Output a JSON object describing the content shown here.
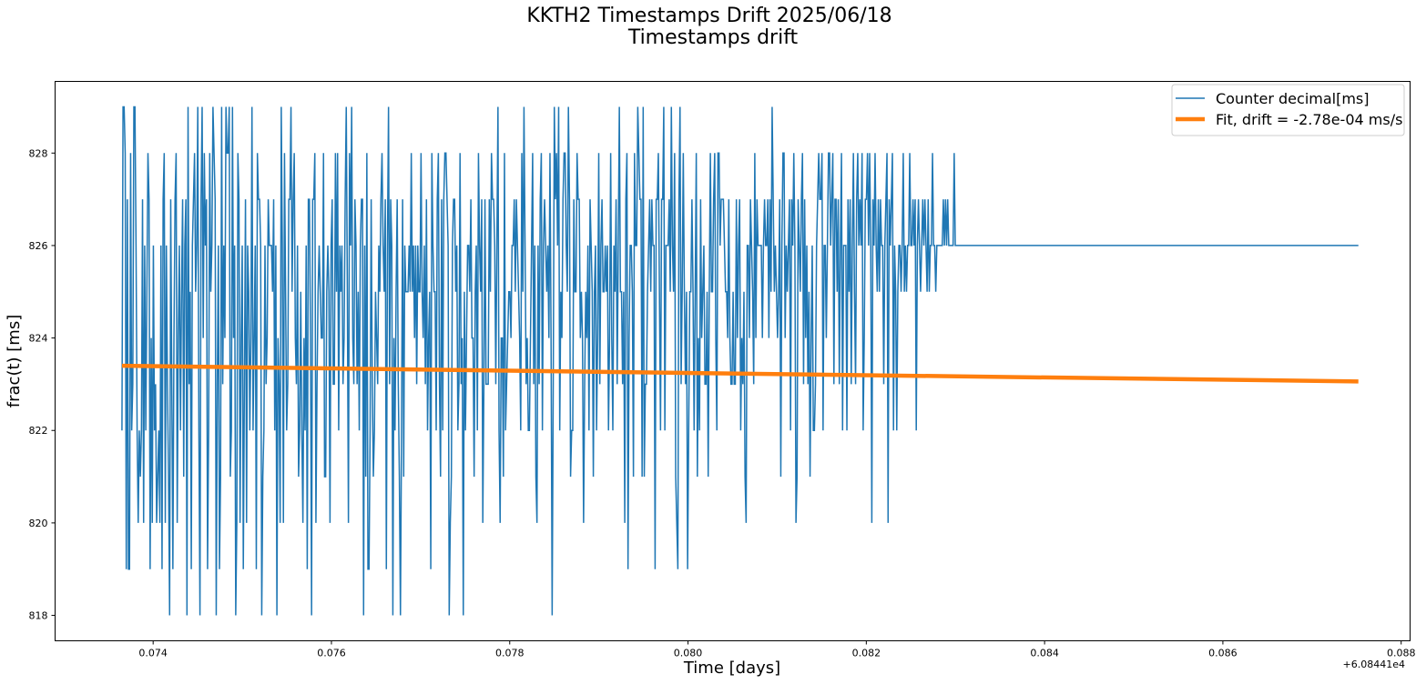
{
  "chart_data": {
    "type": "line",
    "title": "KKTH2 Timestamps Drift 2025/06/18",
    "subtitle": "Timestamps drift",
    "xlabel": "Time [days]",
    "ylabel": "frac(t) [ms]",
    "x_offset_label": "+6.08441e4",
    "xlim": [
      0.0729,
      0.0881
    ],
    "ylim": [
      817.45,
      829.55
    ],
    "xticks": [
      0.074,
      0.076,
      0.078,
      0.08,
      0.082,
      0.084,
      0.086,
      0.088
    ],
    "xtick_labels": [
      "0.074",
      "0.076",
      "0.078",
      "0.080",
      "0.082",
      "0.084",
      "0.086",
      "0.088"
    ],
    "yticks": [
      818,
      820,
      822,
      824,
      826,
      828
    ],
    "ytick_labels": [
      "818",
      "820",
      "822",
      "824",
      "826",
      "828"
    ],
    "grid": false,
    "legend_position": "top-right",
    "series": [
      {
        "name": "Counter decimal[ms]",
        "color": "#1f77b4",
        "x_start": 0.07365,
        "x_end": 0.08752,
        "n_points": 1200,
        "value_min": 818,
        "value_max": 829,
        "values": [
          822,
          829,
          829,
          828,
          819,
          827,
          819,
          819,
          828,
          822,
          823,
          829,
          829,
          826,
          822,
          820,
          822,
          821,
          822,
          827,
          820,
          826,
          822,
          825,
          828,
          827,
          819,
          824,
          820,
          826,
          822,
          823,
          820,
          821,
          822,
          820,
          826,
          819,
          827,
          828,
          820,
          826,
          823,
          821,
          818,
          827,
          823,
          819,
          824,
          827,
          828,
          820,
          824,
          826,
          822,
          825,
          827,
          821,
          826,
          827,
          818,
          829,
          823,
          825,
          819,
          826,
          827,
          828,
          825,
          826,
          829,
          822,
          818,
          827,
          829,
          824,
          828,
          826,
          827,
          819,
          822,
          828,
          825,
          826,
          829,
          828,
          827,
          818,
          823,
          826,
          819,
          821,
          829,
          823,
          826,
          824,
          829,
          828,
          828,
          829,
          821,
          822,
          829,
          824,
          826,
          818,
          820,
          828,
          827,
          820,
          824,
          826,
          819,
          823,
          827,
          820,
          826,
          825,
          822,
          824,
          829,
          822,
          824,
          826,
          819,
          828,
          827,
          827,
          826,
          818,
          821,
          822,
          826,
          823,
          824,
          827,
          826,
          826,
          826,
          825,
          827,
          822,
          826,
          818,
          824,
          823,
          820,
          829,
          826,
          820,
          828,
          825,
          822,
          823,
          827,
          827,
          829,
          825,
          827,
          828,
          824,
          823,
          826,
          821,
          822,
          825,
          822,
          820,
          824,
          822,
          826,
          819,
          827,
          827,
          824,
          818,
          827,
          827,
          828,
          820,
          823,
          825,
          826,
          825,
          824,
          824,
          828,
          821,
          821,
          825,
          826,
          825,
          820,
          826,
          827,
          823,
          823,
          828,
          825,
          828,
          822,
          826,
          825,
          826,
          823,
          824,
          827,
          829,
          825,
          820,
          828,
          826,
          829,
          824,
          823,
          827,
          826,
          823,
          825,
          822,
          826,
          827,
          827,
          818,
          826,
          821,
          828,
          819,
          819,
          822,
          827,
          823,
          821,
          822,
          825,
          824,
          823,
          826,
          825,
          827,
          828,
          826,
          825,
          827,
          819,
          826,
          829,
          823,
          827,
          826,
          818,
          824,
          822,
          825,
          827,
          823,
          821,
          818,
          822,
          827,
          821,
          826,
          825,
          825,
          825,
          826,
          825,
          828,
          825,
          826,
          824,
          826,
          823,
          826,
          825,
          825,
          828,
          825,
          824,
          826,
          823,
          827,
          822,
          824,
          825,
          819,
          828,
          826,
          825,
          825,
          822,
          827,
          828,
          823,
          821,
          827,
          822,
          827,
          828,
          828,
          827,
          826,
          818,
          820,
          821,
          826,
          827,
          827,
          825,
          826,
          822,
          823,
          828,
          823,
          824,
          818,
          825,
          822,
          824,
          826,
          826,
          825,
          827,
          824,
          824,
          821,
          825,
          826,
          822,
          828,
          826,
          825,
          827,
          820,
          823,
          827,
          823,
          823,
          823,
          827,
          825,
          828,
          827,
          827,
          826,
          823,
          826,
          829,
          822,
          820,
          824,
          824,
          821,
          828,
          822,
          823,
          824,
          825,
          825,
          824,
          826,
          826,
          827,
          825,
          827,
          826,
          825,
          824,
          822,
          828,
          825,
          829,
          826,
          823,
          824,
          822,
          822,
          824,
          826,
          828,
          823,
          826,
          821,
          820,
          826,
          823,
          827,
          828,
          822,
          826,
          827,
          826,
          825,
          826,
          824,
          828,
          824,
          818,
          823,
          829,
          827,
          828,
          826,
          829,
          822,
          825,
          824,
          827,
          828,
          828,
          826,
          825,
          829,
          827,
          821,
          822,
          822,
          827,
          825,
          825,
          828,
          827,
          827,
          824,
          825,
          824,
          820,
          823,
          825,
          824,
          826,
          822,
          827,
          826,
          825,
          821,
          825,
          826,
          822,
          824,
          828,
          823,
          826,
          827,
          825,
          825,
          826,
          825,
          826,
          822,
          824,
          828,
          824,
          822,
          826,
          825,
          827,
          823,
          826,
          829,
          825,
          825,
          823,
          825,
          820,
          827,
          828,
          819,
          824,
          826,
          826,
          825,
          821,
          828,
          826,
          826,
          829,
          828,
          827,
          827,
          821,
          829,
          821,
          823,
          823,
          825,
          826,
          827,
          825,
          827,
          826,
          826,
          819,
          827,
          827,
          828,
          825,
          822,
          827,
          827,
          829,
          822,
          826,
          826,
          826,
          827,
          825,
          829,
          826,
          825,
          828,
          821,
          820,
          819,
          827,
          829,
          823,
          825,
          828,
          825,
          823,
          825,
          819,
          822,
          825,
          825,
          827,
          825,
          822,
          825,
          828,
          821,
          824,
          822,
          827,
          824,
          825,
          826,
          823,
          823,
          825,
          821,
          825,
          828,
          825,
          825,
          827,
          828,
          824,
          822,
          828,
          828,
          826,
          827,
          827,
          827,
          826,
          825,
          825,
          824,
          827,
          824,
          823,
          823,
          825,
          823,
          823,
          827,
          824,
          826,
          827,
          822,
          824,
          823,
          825,
          821,
          820,
          826,
          826,
          824,
          827,
          826,
          825,
          823,
          828,
          824,
          827,
          826,
          826,
          826,
          826,
          824,
          826,
          827,
          826,
          826,
          827,
          824,
          827,
          825,
          829,
          827,
          825,
          826,
          825,
          824,
          825,
          827,
          821,
          826,
          828,
          828,
          824,
          826,
          825,
          826,
          827,
          822,
          827,
          826,
          828,
          826,
          820,
          821,
          827,
          826,
          825,
          827,
          828,
          823,
          827,
          824,
          826,
          823,
          825,
          821,
          824,
          826,
          822,
          822,
          823,
          826,
          827,
          828,
          827,
          827,
          828,
          822,
          826,
          826,
          824,
          826,
          828,
          828,
          826,
          827,
          828,
          823,
          827,
          827,
          825,
          827,
          823,
          826,
          828,
          822,
          826,
          826,
          826,
          822,
          827,
          825,
          827,
          823,
          826,
          828,
          825,
          823,
          827,
          828,
          826,
          827,
          826,
          828,
          822,
          824,
          827,
          827,
          828,
          826,
          828,
          826,
          820,
          827,
          826,
          828,
          826,
          825,
          827,
          825,
          827,
          826,
          826,
          823,
          826,
          827,
          828,
          820,
          827,
          826,
          827,
          828,
          822,
          826,
          825,
          822,
          825,
          826,
          826,
          825,
          826,
          828,
          825,
          826,
          825,
          826,
          826,
          828,
          826,
          826,
          827,
          826,
          827,
          822,
          826,
          827,
          826,
          825,
          826,
          827,
          826,
          827,
          826,
          825,
          827,
          825,
          826,
          826,
          828,
          826,
          826,
          825,
          826,
          826,
          826,
          826,
          826,
          826,
          827,
          826,
          827,
          826,
          827,
          826,
          826,
          826,
          826,
          826,
          828,
          826,
          826,
          826,
          826,
          826,
          826,
          826,
          826,
          826,
          826,
          826,
          826,
          826,
          826,
          826,
          826,
          826,
          826,
          826,
          826,
          826,
          826,
          826,
          826,
          826,
          826,
          826,
          826,
          826,
          826,
          826,
          826,
          826,
          826,
          826,
          826,
          826,
          826,
          826,
          826,
          826,
          826,
          826,
          826,
          826,
          826,
          826,
          826,
          826,
          826,
          826,
          826,
          826,
          826,
          826,
          826,
          826,
          826,
          826,
          826,
          826,
          826,
          826,
          826,
          826,
          826,
          826,
          826,
          826,
          826,
          826,
          826,
          826,
          826,
          826,
          826,
          826,
          826,
          826,
          826,
          826,
          826,
          826,
          826,
          826,
          826,
          826,
          826,
          826,
          826,
          826,
          826,
          826,
          826,
          826,
          826,
          826,
          826,
          826,
          826,
          826,
          826,
          826,
          826,
          826,
          826,
          826,
          826,
          826,
          826,
          826,
          826,
          826,
          826,
          826,
          826,
          826,
          826,
          826,
          826,
          826,
          826,
          826,
          826,
          826,
          826,
          826,
          826,
          826,
          826,
          826,
          826,
          826,
          826,
          826,
          826,
          826,
          826,
          826,
          826,
          826,
          826,
          826,
          826,
          826,
          826,
          826,
          826,
          826,
          826,
          826,
          826,
          826,
          826,
          826,
          826,
          826,
          826,
          826,
          826,
          826,
          826,
          826,
          826,
          826,
          826,
          826,
          826,
          826,
          826,
          826,
          826,
          826,
          826,
          826,
          826,
          826,
          826,
          826,
          826,
          826,
          826,
          826,
          826,
          826,
          826,
          826,
          826,
          826,
          826,
          826,
          826,
          826,
          826,
          826,
          826,
          826,
          826,
          826,
          826,
          826,
          826,
          826,
          826,
          826,
          826,
          826,
          826,
          826,
          826,
          826,
          826,
          826,
          826,
          826,
          826,
          826,
          826,
          826,
          826,
          826,
          826,
          826,
          826,
          826,
          826,
          826,
          826,
          826,
          826,
          826,
          826,
          826,
          826,
          826,
          826,
          826,
          826,
          826,
          826,
          826,
          826,
          826,
          826,
          826,
          826,
          826,
          826,
          826,
          826,
          826,
          826,
          826,
          826,
          826,
          826,
          826,
          826,
          826,
          826,
          826,
          826,
          826,
          826,
          826,
          826,
          826,
          826,
          826,
          826,
          826,
          826,
          826,
          826,
          826,
          826,
          826,
          826,
          826,
          826,
          826,
          826,
          826,
          826,
          826,
          826,
          826,
          826,
          826,
          826,
          826,
          826,
          826,
          826,
          826,
          826,
          826,
          826,
          826,
          826,
          826,
          826,
          826,
          826,
          826,
          826,
          826,
          826,
          826,
          826,
          826,
          826,
          826,
          826,
          826,
          826,
          826,
          826,
          826,
          826,
          826,
          826,
          826,
          826,
          826,
          826,
          826,
          826,
          826,
          826,
          826,
          826,
          826,
          826,
          826,
          826,
          826,
          826,
          826,
          826,
          826,
          826,
          826,
          826,
          826,
          826,
          826,
          826,
          826,
          826,
          826,
          826,
          826,
          826,
          826,
          826,
          826,
          826,
          826,
          826,
          826,
          826,
          826,
          826,
          826,
          826,
          826,
          826,
          826,
          826,
          826,
          826,
          826
        ]
      },
      {
        "name": "Fit, drift = -2.78e-04 ms/s",
        "color": "#ff7f0e",
        "x": [
          0.07365,
          0.08752
        ],
        "values": [
          823.4,
          823.06
        ]
      }
    ]
  }
}
